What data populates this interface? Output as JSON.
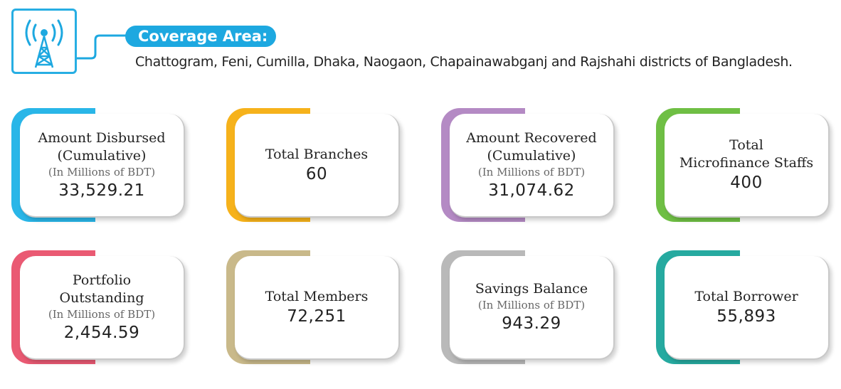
{
  "coverage": {
    "label": "Coverage Area:",
    "text": "Chattogram, Feni, Cumilla, Dhaka, Naogaon, Chapainawabganj and Rajshahi districts of Bangladesh.",
    "icon": "radio-tower-icon",
    "color": "#1da8e0"
  },
  "cards": [
    {
      "title_line1": "Amount Disbursed",
      "title_line2": "(Cumulative)",
      "unit": "(In Millions of BDT)",
      "value": "33,529.21",
      "color": "#29b6e8"
    },
    {
      "title_line1": "Total Branches",
      "title_line2": "",
      "unit": "",
      "value": "60",
      "color": "#f6b21b"
    },
    {
      "title_line1": "Amount Recovered",
      "title_line2": "(Cumulative)",
      "unit": "(In Millions of BDT)",
      "value": "31,074.62",
      "color": "#b48ac4"
    },
    {
      "title_line1": "Total",
      "title_line2": "Microfinance Staffs",
      "unit": "",
      "value": "400",
      "color": "#6fbf44"
    },
    {
      "title_line1": "Portfolio",
      "title_line2": "Outstanding",
      "unit": "(In Millions of BDT)",
      "value": "2,454.59",
      "color": "#ea5a73"
    },
    {
      "title_line1": "Total Members",
      "title_line2": "",
      "unit": "",
      "value": "72,251",
      "color": "#c9b98a"
    },
    {
      "title_line1": "Savings Balance",
      "title_line2": "",
      "unit": "(In Millions of BDT)",
      "value": "943.29",
      "color": "#b9b9b9"
    },
    {
      "title_line1": "Total Borrower",
      "title_line2": "",
      "unit": "",
      "value": "55,893",
      "color": "#26aaa0"
    }
  ]
}
